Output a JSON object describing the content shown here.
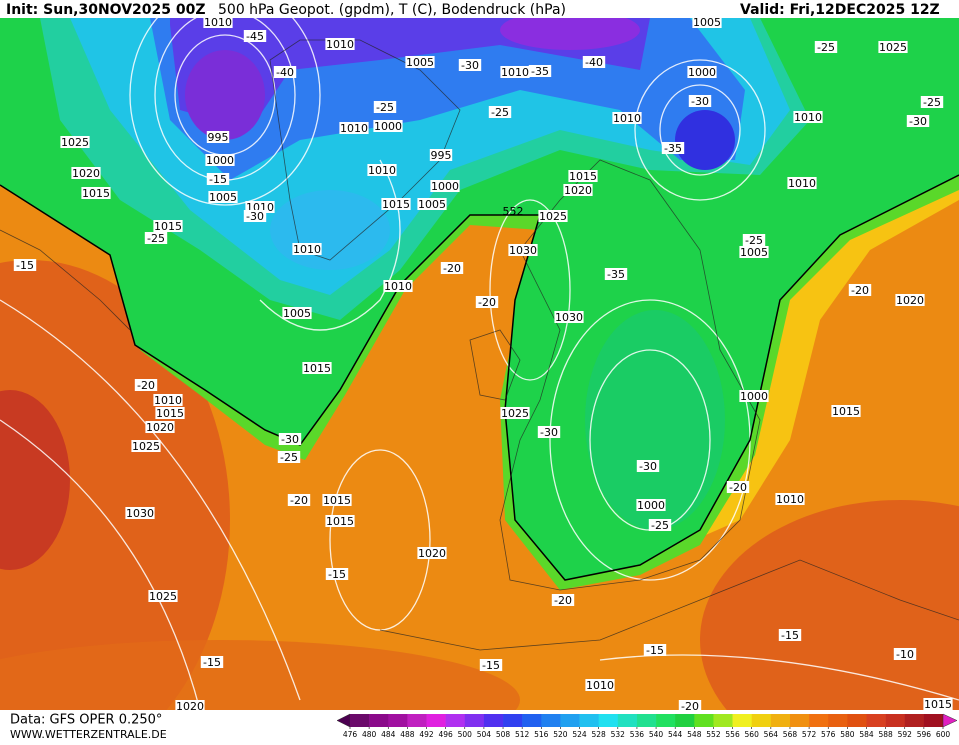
{
  "header": {
    "init": "Init: Sun,30NOV2025 00Z",
    "title": "500 hPa Geopot. (gpdm), T (C), Bodendruck (hPa)",
    "valid": "Valid: Fri,12DEC2025 12Z"
  },
  "footer": {
    "source": "Data: GFS OPER 0.250°",
    "site": "WWW.WETTERZENTRALE.DE"
  },
  "colorbar": {
    "ticks": [
      476,
      480,
      484,
      488,
      492,
      496,
      500,
      504,
      508,
      512,
      516,
      520,
      524,
      528,
      532,
      536,
      540,
      544,
      548,
      552,
      556,
      560,
      564,
      568,
      572,
      576,
      580,
      584,
      588,
      592,
      596,
      600
    ],
    "colors": [
      "#4b0050",
      "#6a0a6a",
      "#8a0a8a",
      "#a010a0",
      "#c020c0",
      "#e020e0",
      "#b030f0",
      "#8030f0",
      "#5030f0",
      "#3040f0",
      "#2060f0",
      "#2080f0",
      "#20a0f0",
      "#20c0f0",
      "#20e0f0",
      "#20e0c0",
      "#20e090",
      "#20e060",
      "#20d040",
      "#60e020",
      "#a0e820",
      "#f0f020",
      "#f0d010",
      "#f0b010",
      "#f09010",
      "#f07010",
      "#e86010",
      "#e05010",
      "#d84020",
      "#c83020",
      "#b02020",
      "#a01020",
      "#e020c0"
    ]
  },
  "map": {
    "pressure_labels": [
      "1010",
      "1010",
      "1005",
      "1010",
      "1005",
      "1025",
      "1000",
      "1010",
      "1010",
      "1025",
      "995",
      "1000",
      "1010",
      "1000",
      "995",
      "1010",
      "1020",
      "1015",
      "1005",
      "1010",
      "1000",
      "1015",
      "1020",
      "1015",
      "1005",
      "1025",
      "1010",
      "1015",
      "1010",
      "1030",
      "1005",
      "1010",
      "1030",
      "1005",
      "1020",
      "1015",
      "1010",
      "1015",
      "1020",
      "1025",
      "1000",
      "1025",
      "1015",
      "1015",
      "1010",
      "1030",
      "1015",
      "1000",
      "1020",
      "1025",
      "1010",
      "1020",
      "1015"
    ],
    "temperature_labels": [
      "-45",
      "-40",
      "-35",
      "-30",
      "-40",
      "-25",
      "-25",
      "-25",
      "-30",
      "-35",
      "-25",
      "-30",
      "-15",
      "-30",
      "-25",
      "-15",
      "-25",
      "-20",
      "-20",
      "-35",
      "-20",
      "-20",
      "-30",
      "-25",
      "-30",
      "-30",
      "-20",
      "-20",
      "-25",
      "-15",
      "-20",
      "-15",
      "-15",
      "-15",
      "-15",
      "-10",
      "-20"
    ],
    "geopotential_labels": [
      "552"
    ]
  }
}
